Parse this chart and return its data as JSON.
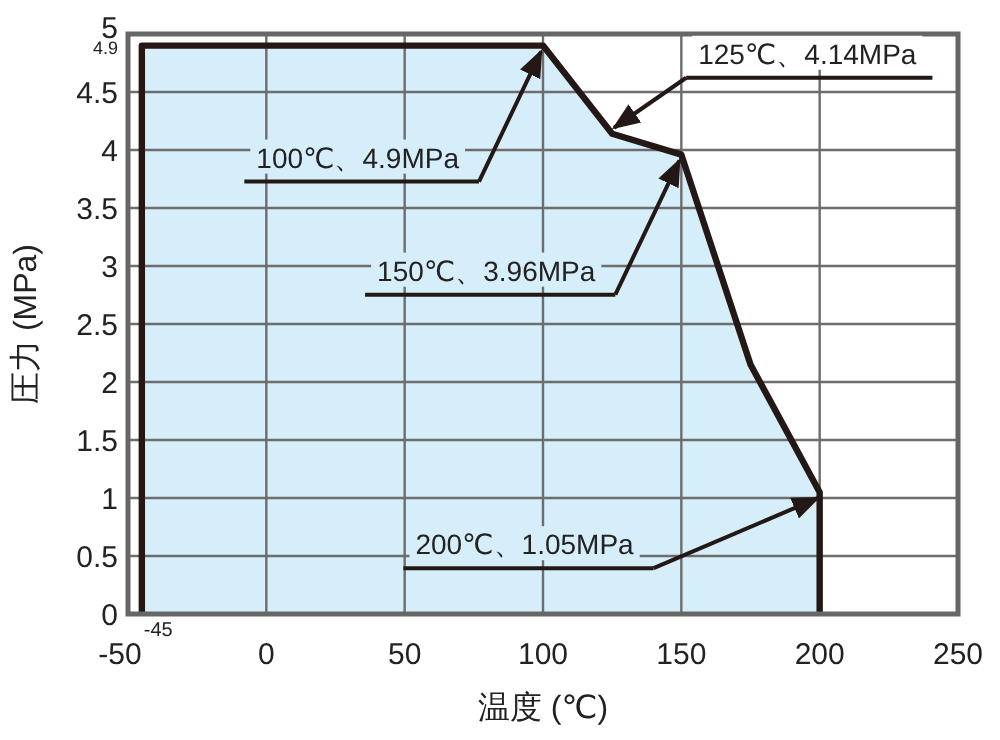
{
  "chart_data": {
    "type": "area",
    "xlabel": "温度 (℃)",
    "ylabel": "圧力 (MPa)",
    "x": [
      -45,
      -45,
      100,
      125,
      150,
      175,
      200,
      200
    ],
    "series": [
      {
        "color": "#231815",
        "values": [
          0,
          4.9,
          4.9,
          4.14,
          3.96,
          2.15,
          1.05,
          0
        ]
      }
    ],
    "xlim": [
      -50,
      250
    ],
    "xticks": [
      -50,
      0,
      50,
      100,
      150,
      200,
      250
    ],
    "ylim": [
      0,
      5
    ],
    "yticks": [
      0,
      0.5,
      1,
      1.5,
      2,
      2.5,
      3,
      3.5,
      4,
      4.5,
      5
    ],
    "grid": true,
    "annotations": [
      {
        "text": "100℃、4.9MPa",
        "x": 100,
        "y": 4.9
      },
      {
        "text": "125℃、4.14MPa",
        "x": 125,
        "y": 4.14
      },
      {
        "text": "150℃、3.96MPa",
        "x": 150,
        "y": 3.96
      },
      {
        "text": "200℃、1.05MPa",
        "x": 200,
        "y": 1.05
      },
      {
        "text": "-45",
        "x": -45,
        "y": 0
      },
      {
        "text": "4.9",
        "x": -45,
        "y": 4.9
      }
    ]
  }
}
